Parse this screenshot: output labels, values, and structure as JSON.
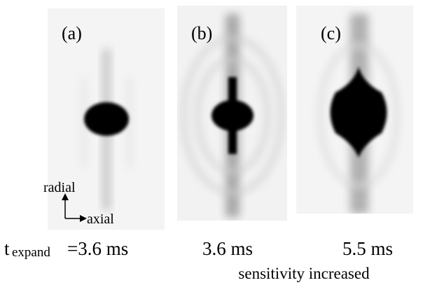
{
  "panels": [
    {
      "label": "(a)"
    },
    {
      "label": "(b)"
    },
    {
      "label": "(c)"
    }
  ],
  "axes": {
    "radial": "radial",
    "axial": "axial"
  },
  "captions": {
    "t": "t",
    "subscript": "expand",
    "a": "=3.6 ms",
    "b": "3.6 ms",
    "c": "5.5 ms",
    "note": "sensitivity increased"
  }
}
